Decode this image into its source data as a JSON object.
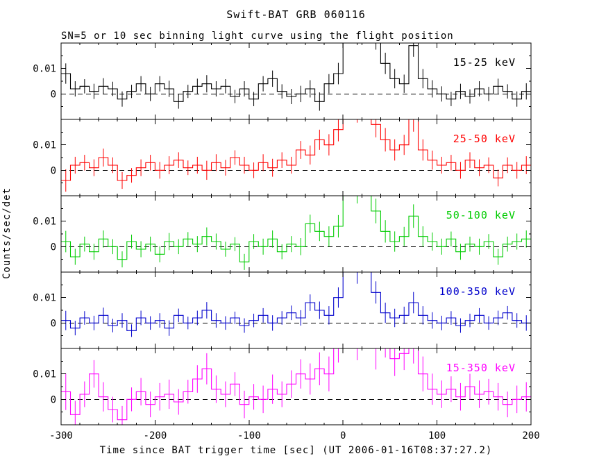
{
  "page": {
    "title": "Swift-BAT GRB 060116",
    "subtitle": "SN=5 or 10 sec binning light curve using the flight position",
    "xlabel": "Time since BAT trigger time [sec] (UT 2006-01-16T08:37:27.2)",
    "ylabel": "Counts/sec/det"
  },
  "chart_data": {
    "type": "line",
    "subtype": "step-histogram-with-errorbars",
    "title": "Swift-BAT GRB 060116",
    "xlabel": "Time since BAT trigger time [sec] (UT 2006-01-16T08:37:27.2)",
    "ylabel": "Counts/sec/det",
    "x_range": [
      -300,
      200
    ],
    "x_ticks": [
      -300,
      -200,
      -100,
      0,
      100,
      200
    ],
    "x_minor_step": 20,
    "bin_width": 10,
    "x_start": -300,
    "ylim": [
      -0.01,
      0.02
    ],
    "y_ticks": [
      0,
      0.01
    ],
    "y_minor_ticks": [
      -0.005,
      0.005,
      0.015
    ],
    "zero_line": "dashed",
    "grid": false,
    "legend_position": "inside-right-per-panel",
    "base_errors": [
      0.004,
      0.003,
      0.0028,
      0.003,
      0.0032,
      0.0028,
      0.003,
      0.0026,
      0.003,
      0.0028,
      0.003,
      0.0032,
      0.0028,
      0.0026,
      0.003,
      0.0034,
      0.003,
      0.0028,
      0.0026,
      0.003,
      0.0028,
      0.003,
      0.0032,
      0.0028,
      0.003,
      0.0032,
      0.0034,
      0.0036,
      0.0038,
      0.0042,
      0.005,
      0.0048,
      0.005,
      0.0046,
      0.0042,
      0.0038,
      0.0036,
      0.0044,
      0.0038,
      0.0034,
      0.003,
      0.0028,
      0.003,
      0.0028,
      0.003,
      0.0028,
      0.003,
      0.0028,
      0.003,
      0.0032
    ],
    "series": [
      {
        "name": "15-25 keV",
        "color": "#000000",
        "error_scale": 1.0,
        "values": [
          0.008,
          0.002,
          0.003,
          0.001,
          0.003,
          0.002,
          -0.002,
          0.001,
          0.004,
          0.0,
          0.004,
          0.002,
          -0.003,
          0.001,
          0.003,
          0.004,
          0.002,
          0.003,
          -0.001,
          0.002,
          -0.002,
          0.004,
          0.006,
          0.001,
          -0.001,
          0.0,
          0.002,
          -0.003,
          0.004,
          0.008,
          0.03,
          0.024,
          0.03,
          0.022,
          0.012,
          0.006,
          0.004,
          0.019,
          0.006,
          0.002,
          0.0,
          -0.002,
          0.001,
          -0.001,
          0.002,
          0.0,
          0.003,
          0.001,
          -0.002,
          0.001
        ]
      },
      {
        "name": "25-50 keV",
        "color": "#ff0000",
        "error_scale": 1.1,
        "values": [
          -0.004,
          0.002,
          0.003,
          0.001,
          0.005,
          0.002,
          -0.004,
          -0.002,
          0.001,
          0.003,
          0.0,
          0.002,
          0.004,
          0.001,
          0.002,
          0.0,
          0.003,
          0.001,
          0.005,
          0.002,
          0.0,
          0.003,
          0.001,
          0.004,
          0.002,
          0.008,
          0.006,
          0.012,
          0.01,
          0.016,
          0.028,
          0.024,
          0.03,
          0.018,
          0.012,
          0.008,
          0.01,
          0.02,
          0.008,
          0.004,
          0.002,
          0.003,
          0.0,
          0.004,
          0.001,
          0.002,
          -0.003,
          0.002,
          0.0,
          0.002
        ]
      },
      {
        "name": "50-100 keV",
        "color": "#00cc00",
        "error_scale": 1.05,
        "values": [
          0.002,
          -0.004,
          0.001,
          -0.002,
          0.003,
          0.0,
          -0.005,
          0.002,
          -0.001,
          0.001,
          -0.003,
          0.002,
          0.0,
          0.003,
          0.001,
          0.004,
          0.002,
          -0.001,
          0.001,
          -0.006,
          0.002,
          0.0,
          0.003,
          -0.002,
          0.001,
          0.0,
          0.009,
          0.006,
          0.004,
          0.008,
          0.028,
          0.022,
          0.03,
          0.014,
          0.006,
          0.002,
          0.004,
          0.012,
          0.004,
          0.002,
          0.0,
          0.003,
          -0.002,
          0.001,
          0.0,
          0.002,
          -0.004,
          0.001,
          0.002,
          0.003
        ]
      },
      {
        "name": "100-350 keV",
        "color": "#0000cc",
        "error_scale": 0.95,
        "values": [
          0.001,
          -0.002,
          0.002,
          0.0,
          0.003,
          -0.001,
          0.001,
          -0.003,
          0.002,
          0.0,
          0.001,
          -0.002,
          0.003,
          0.0,
          0.002,
          0.005,
          0.001,
          0.0,
          0.002,
          -0.001,
          0.001,
          0.003,
          0.0,
          0.002,
          0.004,
          0.002,
          0.008,
          0.005,
          0.003,
          0.01,
          0.026,
          0.02,
          0.03,
          0.012,
          0.004,
          0.002,
          0.003,
          0.008,
          0.003,
          0.001,
          0.0,
          0.002,
          -0.001,
          0.001,
          0.003,
          0.0,
          0.002,
          0.004,
          0.001,
          0.0
        ]
      },
      {
        "name": "15-350 keV",
        "color": "#ff00ff",
        "error_scale": 1.8,
        "values": [
          0.003,
          -0.006,
          0.002,
          0.01,
          0.001,
          -0.004,
          -0.008,
          0.0,
          0.003,
          -0.002,
          0.001,
          0.002,
          -0.001,
          0.003,
          0.008,
          0.012,
          0.004,
          0.002,
          0.006,
          -0.002,
          0.001,
          0.0,
          0.004,
          0.002,
          0.006,
          0.01,
          0.008,
          0.012,
          0.01,
          0.022,
          0.03,
          0.024,
          0.03,
          0.02,
          0.024,
          0.016,
          0.018,
          0.022,
          0.01,
          0.004,
          0.002,
          0.004,
          0.001,
          0.005,
          0.002,
          0.003,
          0.001,
          -0.002,
          0.0,
          0.001
        ]
      }
    ]
  }
}
